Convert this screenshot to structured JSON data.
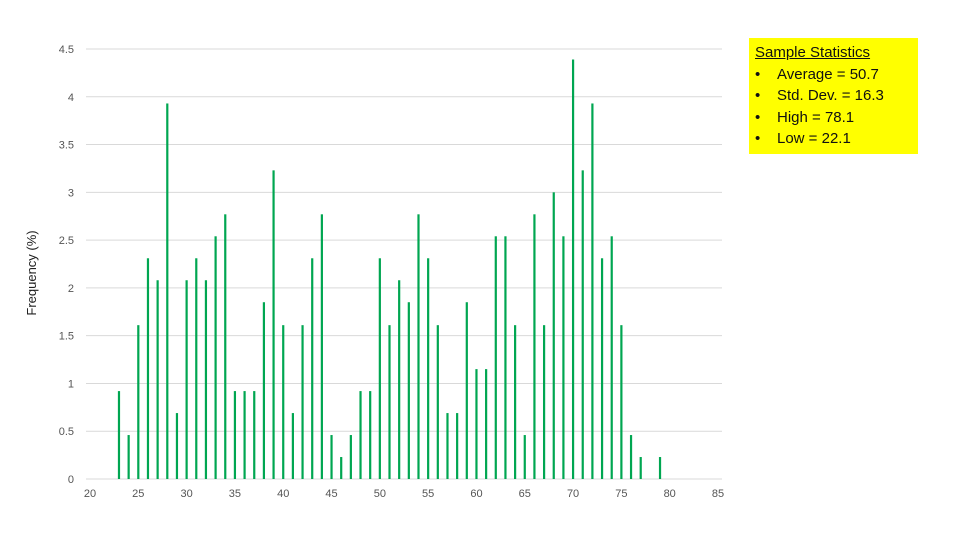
{
  "colors": {
    "bar": "#00a651",
    "grid": "#d9d9d9",
    "callout": "#ffff00"
  },
  "stats_box": {
    "title": "Sample Statistics",
    "bullet": "•",
    "items": [
      "Average = 50.7",
      "Std. Dev. = 16.3",
      "High = 78.1",
      "Low = 22.1"
    ]
  },
  "chart_data": {
    "type": "bar",
    "xlabel": "",
    "ylabel": "Frequency (%)",
    "xlim": [
      20,
      85
    ],
    "ylim": [
      0,
      4.5
    ],
    "x_ticks": [
      "20",
      "25",
      "30",
      "35",
      "40",
      "45",
      "50",
      "55",
      "60",
      "65",
      "70",
      "75",
      "80",
      "85"
    ],
    "y_ticks": [
      "0",
      "0.5",
      "1",
      "1.5",
      "2",
      "2.5",
      "3",
      "3.5",
      "4",
      "4.5"
    ],
    "grid": true,
    "legend": "none",
    "x": [
      23,
      24,
      25,
      26,
      27,
      28,
      29,
      30,
      31,
      32,
      33,
      34,
      35,
      36,
      37,
      38,
      39,
      40,
      41,
      42,
      43,
      44,
      45,
      46,
      47,
      48,
      49,
      50,
      51,
      52,
      53,
      54,
      55,
      56,
      57,
      58,
      59,
      60,
      61,
      62,
      63,
      64,
      65,
      66,
      67,
      68,
      69,
      70,
      71,
      72,
      73,
      74,
      75,
      76,
      77,
      79
    ],
    "values": [
      0.92,
      0.46,
      1.61,
      2.31,
      2.08,
      3.93,
      0.69,
      2.08,
      2.31,
      2.08,
      2.54,
      2.77,
      0.92,
      0.92,
      0.92,
      1.85,
      3.23,
      1.61,
      0.69,
      1.61,
      2.31,
      2.77,
      0.46,
      0.23,
      0.46,
      0.92,
      0.92,
      2.31,
      1.61,
      2.08,
      1.85,
      2.77,
      2.31,
      1.61,
      0.69,
      0.69,
      1.85,
      1.15,
      1.15,
      2.54,
      2.54,
      1.61,
      0.46,
      2.77,
      1.61,
      3.0,
      2.54,
      4.39,
      3.23,
      3.93,
      2.31,
      2.54,
      1.61,
      0.46,
      0.23,
      0.23
    ]
  }
}
